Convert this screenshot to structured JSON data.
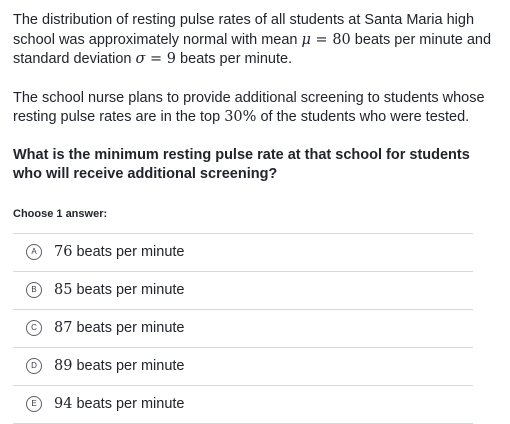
{
  "problem": {
    "p1": {
      "t1": "The distribution of resting pulse rates of all students at Santa Maria high school was approximately normal with mean ",
      "mu": "μ",
      "eq1": " = 80",
      "t2": " beats per minute and standard deviation ",
      "sigma": "σ",
      "eq2": " = 9",
      "t3": " beats per minute."
    },
    "p2": {
      "t1": "The school nurse plans to provide additional screening to students whose resting pulse rates are in the top ",
      "pct": "30%",
      "t2": " of the students who were tested."
    },
    "question": "What is the minimum resting pulse rate at that school for students who will receive additional screening?"
  },
  "choose_label": "Choose 1 answer:",
  "choices": [
    {
      "letter": "A",
      "num": "76",
      "text": " beats per minute"
    },
    {
      "letter": "B",
      "num": "85",
      "text": " beats per minute"
    },
    {
      "letter": "C",
      "num": "87",
      "text": " beats per minute"
    },
    {
      "letter": "D",
      "num": "89",
      "text": " beats per minute"
    },
    {
      "letter": "E",
      "num": "94",
      "text": " beats per minute"
    }
  ]
}
